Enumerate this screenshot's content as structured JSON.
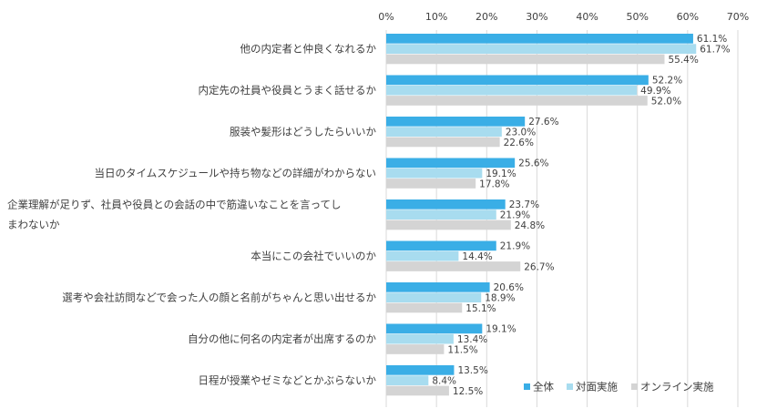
{
  "chart_data": {
    "type": "bar",
    "orientation": "horizontal",
    "title": "",
    "xlabel": "",
    "ylabel": "",
    "xlim": [
      0,
      70
    ],
    "x_ticks": [
      0,
      10,
      20,
      30,
      40,
      50,
      60,
      70
    ],
    "x_tick_labels": [
      "0%",
      "10%",
      "20%",
      "30%",
      "40%",
      "50%",
      "60%",
      "70%"
    ],
    "x_axis_position": "top",
    "grid": true,
    "legend_position": "bottom-right",
    "value_suffix": "%",
    "categories": [
      {
        "label_lines": [
          "他の内定者と仲良くなれるか"
        ]
      },
      {
        "label_lines": [
          "内定先の社員や役員とうまく話せるか"
        ]
      },
      {
        "label_lines": [
          "服装や髪形はどうしたらいいか"
        ]
      },
      {
        "label_lines": [
          "当日のタイムスケジュールや持ち物などの詳細がわからない"
        ]
      },
      {
        "label_lines": [
          "企業理解が足りず、社員や役員との会話の中で筋違いなことを言ってし",
          "まわないか"
        ]
      },
      {
        "label_lines": [
          "本当にこの会社でいいのか"
        ]
      },
      {
        "label_lines": [
          "選考や会社訪問などで会った人の顔と名前がちゃんと思い出せるか"
        ]
      },
      {
        "label_lines": [
          "自分の他に何名の内定者が出席するのか"
        ]
      },
      {
        "label_lines": [
          "日程が授業やゼミなどとかぶらないか"
        ]
      }
    ],
    "series": [
      {
        "name": "全体",
        "color": "#3aaee6",
        "values": [
          61.1,
          52.2,
          27.6,
          25.6,
          23.7,
          21.9,
          20.6,
          19.1,
          13.5
        ],
        "labels": [
          "61.1%",
          "52.2%",
          "27.6%",
          "25.6%",
          "23.7%",
          "21.9%",
          "20.6%",
          "19.1%",
          "13.5%"
        ]
      },
      {
        "name": "対面実施",
        "color": "#a8dcef",
        "values": [
          61.7,
          49.9,
          23.0,
          19.1,
          21.9,
          14.4,
          18.9,
          13.4,
          8.4
        ],
        "labels": [
          "61.7%",
          "49.9%",
          "23.0%",
          "19.1%",
          "21.9%",
          "14.4%",
          "18.9%",
          "13.4%",
          "8.4%"
        ]
      },
      {
        "name": "オンライン実施",
        "color": "#d4d4d4",
        "values": [
          55.4,
          52.0,
          22.6,
          17.8,
          24.8,
          26.7,
          15.1,
          11.5,
          12.5
        ],
        "labels": [
          "55.4%",
          "52.0%",
          "22.6%",
          "17.8%",
          "24.8%",
          "26.7%",
          "15.1%",
          "11.5%",
          "12.5%"
        ]
      }
    ]
  }
}
